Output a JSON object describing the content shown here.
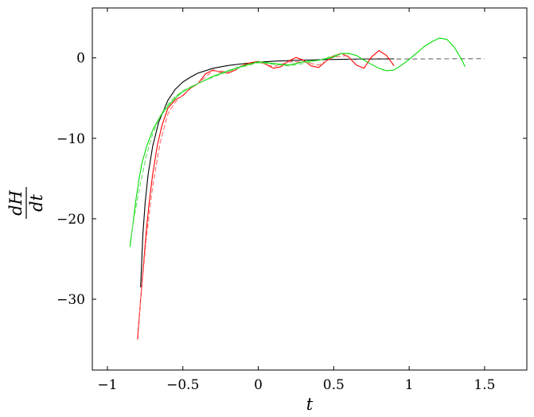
{
  "chart_data": {
    "type": "line",
    "title": "",
    "xlabel": "t",
    "ylabel_num": "dH",
    "ylabel_den": "dt",
    "xlim": [
      -1.1,
      1.78
    ],
    "ylim": [
      -38.8,
      6.2
    ],
    "xticks": [
      -1,
      -0.5,
      0,
      0.5,
      1,
      1.5
    ],
    "xtick_labels": [
      "−1",
      "−0.5",
      "0",
      "0.5",
      "1",
      "1.5"
    ],
    "yticks": [
      0,
      -10,
      -20,
      -30
    ],
    "ytick_labels": [
      "0",
      "−10",
      "−20",
      "−30"
    ],
    "grid": false,
    "series": [
      {
        "color": "#000000",
        "dash": "",
        "x": [
          -0.78,
          -0.765,
          -0.75,
          -0.73,
          -0.7,
          -0.66,
          -0.6,
          -0.55,
          -0.5,
          -0.45,
          -0.4,
          -0.3,
          -0.2,
          -0.1,
          0,
          0.1,
          0.2,
          0.3,
          0.5,
          0.7,
          0.9
        ],
        "y": [
          -28.5,
          -22,
          -18,
          -14.5,
          -11,
          -8,
          -5.3,
          -3.9,
          -3,
          -2.4,
          -1.9,
          -1.3,
          -0.95,
          -0.72,
          -0.55,
          -0.42,
          -0.35,
          -0.28,
          -0.2,
          -0.15,
          -0.12
        ]
      },
      {
        "color": "#666666",
        "dash": "6,4",
        "x": [
          0.6,
          0.8,
          1.0,
          1.2,
          1.4,
          1.5
        ],
        "y": [
          -0.18,
          -0.16,
          -0.14,
          -0.12,
          -0.11,
          -0.1
        ]
      },
      {
        "color": "#ff0000",
        "dash": "",
        "x": [
          -0.8,
          -0.78,
          -0.76,
          -0.74,
          -0.72,
          -0.7,
          -0.67,
          -0.64,
          -0.6,
          -0.55,
          -0.5,
          -0.45,
          -0.4,
          -0.35,
          -0.3,
          -0.25,
          -0.2,
          -0.15,
          -0.1,
          -0.05,
          0,
          0.05,
          0.1,
          0.15,
          0.2,
          0.25,
          0.3,
          0.35,
          0.4,
          0.45,
          0.5,
          0.55,
          0.6,
          0.65,
          0.7,
          0.75,
          0.8,
          0.85,
          0.9
        ],
        "y": [
          -35,
          -30,
          -25.5,
          -21,
          -17.5,
          -14.5,
          -11,
          -8.5,
          -6.3,
          -5.2,
          -4.7,
          -3.8,
          -3.2,
          -2,
          -1.5,
          -1.8,
          -1.9,
          -1.5,
          -0.9,
          -0.6,
          -0.45,
          -0.8,
          -1.3,
          -1.1,
          -0.4,
          0.05,
          -0.3,
          -1,
          -1.2,
          -0.4,
          0.25,
          0.55,
          0.1,
          -0.9,
          -1.3,
          0.1,
          0.9,
          0.3,
          -1
        ]
      },
      {
        "color": "#ff6666",
        "dash": "6,3",
        "x": [
          -0.8,
          -0.77,
          -0.74,
          -0.7,
          -0.65,
          -0.6,
          -0.55,
          -0.5,
          -0.45,
          -0.4,
          -0.3,
          -0.2,
          -0.1,
          0,
          0.1,
          0.2,
          0.3,
          0.4,
          0.5,
          0.6
        ],
        "y": [
          -34.5,
          -28,
          -22,
          -16,
          -10.5,
          -7,
          -5.5,
          -4.6,
          -3.8,
          -3.2,
          -1.6,
          -1.7,
          -0.9,
          -0.5,
          -1.1,
          -0.5,
          -0.5,
          -0.9,
          0.1,
          0.3
        ]
      },
      {
        "color": "#00dd00",
        "dash": "",
        "x": [
          -0.85,
          -0.83,
          -0.81,
          -0.79,
          -0.77,
          -0.74,
          -0.7,
          -0.66,
          -0.62,
          -0.58,
          -0.54,
          -0.5,
          -0.4,
          -0.3,
          -0.2,
          -0.1,
          0,
          0.1,
          0.2,
          0.3,
          0.4,
          0.5,
          0.55,
          0.6,
          0.65,
          0.7,
          0.75,
          0.8,
          0.85,
          0.9,
          0.95,
          1.0,
          1.05,
          1.1,
          1.15,
          1.2,
          1.25,
          1.3,
          1.35,
          1.37
        ],
        "y": [
          -23.5,
          -20.5,
          -17.5,
          -15,
          -13,
          -11,
          -9,
          -7.6,
          -6.5,
          -5.6,
          -4.8,
          -4.2,
          -3.2,
          -2.3,
          -1.6,
          -1,
          -0.5,
          -0.7,
          -0.9,
          -0.5,
          -0.3,
          0.1,
          0.55,
          0.55,
          0.3,
          -0.3,
          -0.8,
          -1.3,
          -1.6,
          -1.5,
          -0.9,
          -0.2,
          0.6,
          1.4,
          2,
          2.45,
          2.3,
          1.3,
          -0.3,
          -1.1
        ]
      },
      {
        "color": "#66dd66",
        "dash": "6,3",
        "x": [
          -0.85,
          -0.82,
          -0.78,
          -0.74,
          -0.7,
          -0.65,
          -0.6,
          -0.55,
          -0.5,
          -0.45,
          -0.4,
          -0.3,
          -0.2,
          -0.1,
          0,
          0.1,
          0.2,
          0.3,
          0.4,
          0.5,
          0.55,
          0.6
        ],
        "y": [
          -23,
          -19.5,
          -15.5,
          -12,
          -9.5,
          -7.2,
          -5.8,
          -4.8,
          -4.1,
          -3.6,
          -3.2,
          -2.4,
          -1.7,
          -1.1,
          -0.6,
          -0.8,
          -1,
          -0.7,
          -0.3,
          0.3,
          0.5,
          0.45
        ]
      }
    ]
  }
}
